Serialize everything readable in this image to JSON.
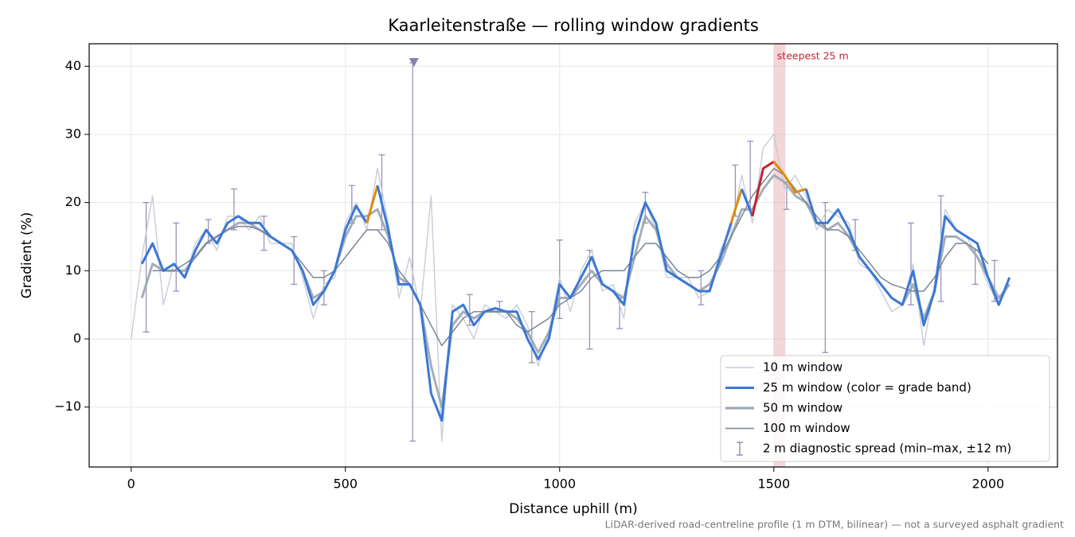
{
  "chart_data": {
    "type": "line",
    "title": "Kaarleitenstraße — rolling window gradients",
    "x_label": "Distance uphill (m)",
    "y_label": "Gradient (%)",
    "footnote": "LiDAR-derived road-centreline profile (1 m DTM, bilinear) — not a surveyed asphalt gradient",
    "xlim": [
      -98,
      2162
    ],
    "ylim": [
      -18.8,
      43.3
    ],
    "xticks": [
      0,
      500,
      1000,
      1500,
      2000
    ],
    "yticks": [
      {
        "value": -10,
        "label": "−10"
      },
      0,
      10,
      20,
      30,
      40
    ],
    "grid": true,
    "legend": "lower right",
    "x": [
      0,
      25,
      50,
      75,
      100,
      125,
      150,
      175,
      200,
      225,
      250,
      275,
      300,
      325,
      350,
      375,
      400,
      425,
      450,
      475,
      500,
      525,
      550,
      575,
      600,
      625,
      650,
      675,
      700,
      725,
      750,
      775,
      800,
      825,
      850,
      875,
      900,
      925,
      950,
      975,
      1000,
      1025,
      1050,
      1075,
      1100,
      1125,
      1150,
      1175,
      1200,
      1225,
      1250,
      1275,
      1300,
      1325,
      1350,
      1375,
      1400,
      1425,
      1450,
      1475,
      1500,
      1525,
      1550,
      1575,
      1600,
      1625,
      1650,
      1675,
      1700,
      1725,
      1750,
      1775,
      1800,
      1825,
      1850,
      1875,
      1900,
      1925,
      1950,
      1975,
      2000,
      2025,
      2050
    ],
    "series": [
      {
        "name": "10 m window",
        "color": "#c3cad6",
        "width": 1.5,
        "values": [
          0,
          12,
          21,
          5,
          11,
          9,
          14,
          16,
          13,
          18,
          18,
          16,
          18,
          14,
          14,
          14,
          9,
          3,
          8,
          9,
          17,
          20,
          16,
          25,
          17,
          6,
          12,
          4,
          21,
          -15,
          5,
          3,
          0,
          5,
          4,
          3,
          5,
          2,
          -4,
          1,
          9,
          4,
          10,
          13,
          7,
          8,
          3,
          17,
          20,
          16,
          9,
          9,
          9,
          6,
          7,
          13,
          16,
          24,
          17,
          28,
          30,
          22,
          24,
          21,
          16,
          19,
          18,
          17,
          11,
          10,
          7,
          4,
          5,
          11,
          -1,
          8,
          19,
          16,
          15,
          12,
          8,
          5,
          8
        ]
      },
      {
        "name": "25 m window (color = grade band)",
        "color": "#3a78d4",
        "width": 3,
        "values": [
          null,
          11,
          14,
          10,
          11,
          9,
          13,
          16,
          14,
          17,
          18,
          17,
          17,
          15,
          14,
          13,
          10,
          5,
          7,
          10,
          16,
          19.5,
          17,
          22.5,
          16,
          8,
          8,
          5,
          -8,
          -12,
          4,
          5,
          2,
          4,
          4.5,
          4,
          4,
          0,
          -3,
          0,
          8,
          6,
          9,
          12,
          8,
          7,
          5,
          15,
          20,
          17,
          10,
          9,
          8,
          7,
          7,
          12,
          17,
          22,
          18,
          25,
          26,
          24,
          21.5,
          22,
          17,
          17,
          19,
          16,
          12,
          10,
          8,
          6,
          5,
          10,
          2,
          7,
          18,
          16,
          15,
          14,
          9,
          5,
          9
        ],
        "colors": [
          "#3a78d4",
          "#3a78d4",
          "#3a78d4",
          "#3a78d4",
          "#3a78d4",
          "#3a78d4",
          "#3a78d4",
          "#3a78d4",
          "#3a78d4",
          "#3a78d4",
          "#3a78d4",
          "#3a78d4",
          "#3a78d4",
          "#3a78d4",
          "#3a78d4",
          "#3a78d4",
          "#3a78d4",
          "#3a78d4",
          "#3a78d4",
          "#3a78d4",
          "#3a78d4",
          "#3a78d4",
          "#3a78d4",
          "#e08a0b",
          "#3a78d4",
          "#3a78d4",
          "#3a78d4",
          "#3a78d4",
          "#3a78d4",
          "#3a78d4",
          "#3a78d4",
          "#3a78d4",
          "#3a78d4",
          "#3a78d4",
          "#3a78d4",
          "#3a78d4",
          "#3a78d4",
          "#3a78d4",
          "#3a78d4",
          "#3a78d4",
          "#3a78d4",
          "#3a78d4",
          "#3a78d4",
          "#3a78d4",
          "#3a78d4",
          "#3a78d4",
          "#3a78d4",
          "#3a78d4",
          "#3a78d4",
          "#3a78d4",
          "#3a78d4",
          "#3a78d4",
          "#3a78d4",
          "#3a78d4",
          "#3a78d4",
          "#3a78d4",
          "#3a78d4",
          "#e08a0b",
          "#3a78d4",
          "#c8202e",
          "#c8202e",
          "#e08a0b",
          "#e08a0b",
          "#e08a0b",
          "#3a78d4",
          "#3a78d4",
          "#3a78d4",
          "#3a78d4",
          "#3a78d4",
          "#3a78d4",
          "#3a78d4",
          "#3a78d4",
          "#3a78d4",
          "#3a78d4",
          "#3a78d4",
          "#3a78d4",
          "#3a78d4",
          "#3a78d4",
          "#3a78d4",
          "#3a78d4",
          "#3a78d4",
          "#3a78d4",
          "#3a78d4"
        ]
      },
      {
        "name": "50 m window",
        "color": "#9aa5b4",
        "width": 3,
        "values": [
          null,
          6,
          11,
          10,
          10,
          10,
          12,
          14,
          15,
          16,
          17,
          17,
          16,
          15,
          14,
          13,
          10,
          6,
          7,
          10,
          15,
          18,
          18,
          19,
          15,
          9,
          8,
          5,
          -4,
          -10,
          2,
          4,
          3,
          4,
          4,
          4,
          3,
          1,
          -2,
          1,
          6,
          6,
          8,
          10,
          8,
          7,
          6,
          12,
          18,
          16,
          11,
          9,
          8,
          7,
          8,
          11,
          15,
          19,
          19,
          22,
          24,
          23,
          21,
          20,
          17,
          16,
          17,
          15,
          12,
          10,
          8,
          6,
          5,
          8,
          3,
          7,
          15,
          15,
          14,
          12,
          9,
          6,
          8
        ]
      },
      {
        "name": "100 m window",
        "color": "#7c8594",
        "width": 1.5,
        "values": [
          null,
          null,
          10,
          10,
          10,
          11,
          12,
          14,
          15,
          16,
          16.5,
          16.5,
          16,
          15,
          14,
          13,
          11,
          9,
          9,
          10,
          12,
          14,
          16,
          16,
          14,
          10,
          8,
          5,
          2,
          -1,
          1,
          3,
          4,
          4,
          4,
          4,
          2,
          1,
          2,
          3,
          5,
          6,
          7,
          9,
          10,
          10,
          10,
          12,
          14,
          14,
          12,
          10,
          9,
          9,
          10,
          12,
          15,
          18,
          21,
          23,
          25,
          24,
          22,
          20,
          18,
          16,
          16,
          15,
          13,
          11,
          9,
          8,
          7.5,
          7,
          7,
          9,
          12,
          14,
          14,
          13,
          11,
          null,
          null
        ]
      }
    ],
    "errorbars": {
      "name": "2 m diagnostic spread (min–max, ±12 m)",
      "color": "#8a7fb0",
      "x": [
        35,
        105,
        180,
        240,
        310,
        380,
        450,
        515,
        585,
        657,
        790,
        860,
        935,
        1000,
        1070,
        1140,
        1200,
        1330,
        1410,
        1445,
        1530,
        1620,
        1690,
        1820,
        1890,
        1970,
        2015
      ],
      "low": [
        1,
        7,
        14,
        16,
        13,
        8,
        5,
        17,
        16,
        -15,
        2,
        4,
        -3.5,
        3,
        -1.5,
        1.5,
        17,
        5,
        18,
        19,
        19,
        -2,
        13,
        5,
        5.5,
        8,
        5.5
      ],
      "high": [
        20,
        17,
        17.5,
        22,
        18,
        15,
        10,
        22.5,
        27,
        40.5,
        6.5,
        5.5,
        4,
        14.5,
        13,
        6,
        21.5,
        10,
        25.5,
        29,
        23,
        20,
        17.5,
        17,
        21,
        13,
        11.5
      ]
    },
    "markers": [
      {
        "x": 660,
        "y": 40.5,
        "color": "#8a7fb0"
      }
    ],
    "highlight": {
      "x0": 1500,
      "x1": 1527,
      "color": "#e7a2a8",
      "label": "steepest 25 m",
      "label_color": "#c8202e"
    }
  }
}
